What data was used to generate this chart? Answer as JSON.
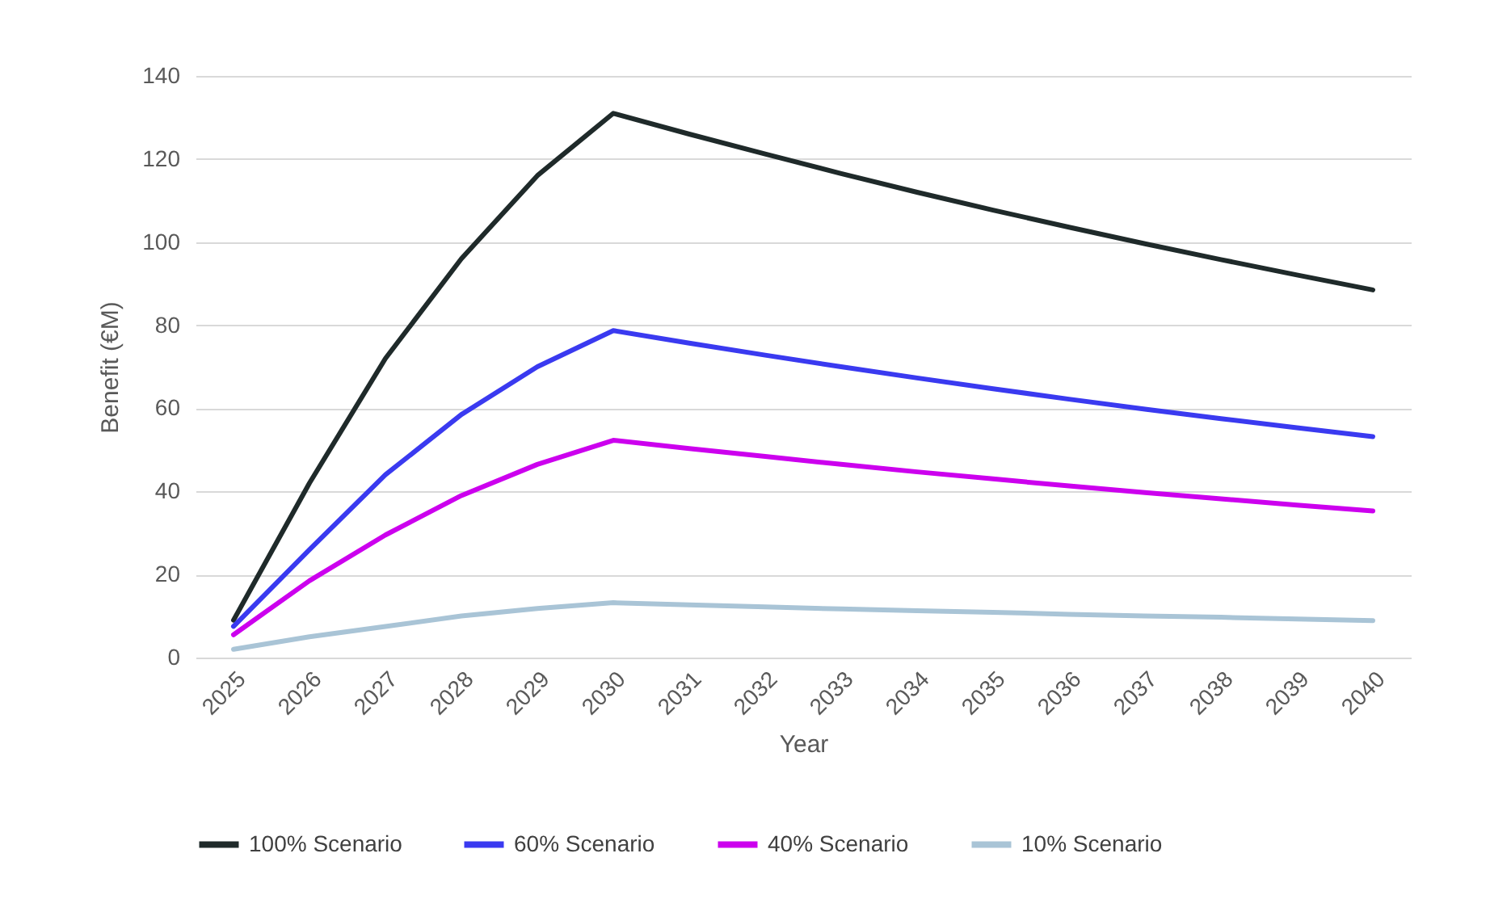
{
  "chart_data": {
    "type": "line",
    "xlabel": "Year",
    "ylabel": "Benefit (€M)",
    "categories": [
      "2025",
      "2026",
      "2027",
      "2028",
      "2029",
      "2030",
      "2031",
      "2032",
      "2033",
      "2034",
      "2035",
      "2036",
      "2037",
      "2038",
      "2039",
      "2040"
    ],
    "series": [
      {
        "name": "100% Scenario",
        "color": "#1f2a2a",
        "values": [
          9,
          42,
          72,
          96,
          116,
          131,
          126,
          121.2,
          116.5,
          112,
          107.7,
          103.6,
          99.6,
          95.8,
          92.1,
          88.5
        ]
      },
      {
        "name": "60% Scenario",
        "color": "#3a3af0",
        "values": [
          7.5,
          26,
          44,
          58.5,
          70,
          78.7,
          75.7,
          72.8,
          70,
          67.3,
          64.7,
          62.2,
          59.8,
          57.5,
          55.3,
          53.2
        ]
      },
      {
        "name": "40% Scenario",
        "color": "#cc00ee",
        "values": [
          5.5,
          18.5,
          29.5,
          39,
          46.5,
          52.3,
          50.3,
          48.4,
          46.5,
          44.7,
          43,
          41.3,
          39.7,
          38.2,
          36.7,
          35.3
        ]
      },
      {
        "name": "10% Scenario",
        "color": "#a9c4d6",
        "values": [
          2,
          5,
          7.5,
          10,
          11.8,
          13.2,
          12.7,
          12.2,
          11.7,
          11.3,
          10.9,
          10.4,
          10,
          9.7,
          9.3,
          8.9
        ]
      }
    ],
    "ylim": [
      0,
      140
    ],
    "yticks": [
      0,
      20,
      40,
      60,
      80,
      100,
      120,
      140
    ],
    "grid": "y",
    "legend": "bottom",
    "marker": "none",
    "line_style": "solid"
  }
}
